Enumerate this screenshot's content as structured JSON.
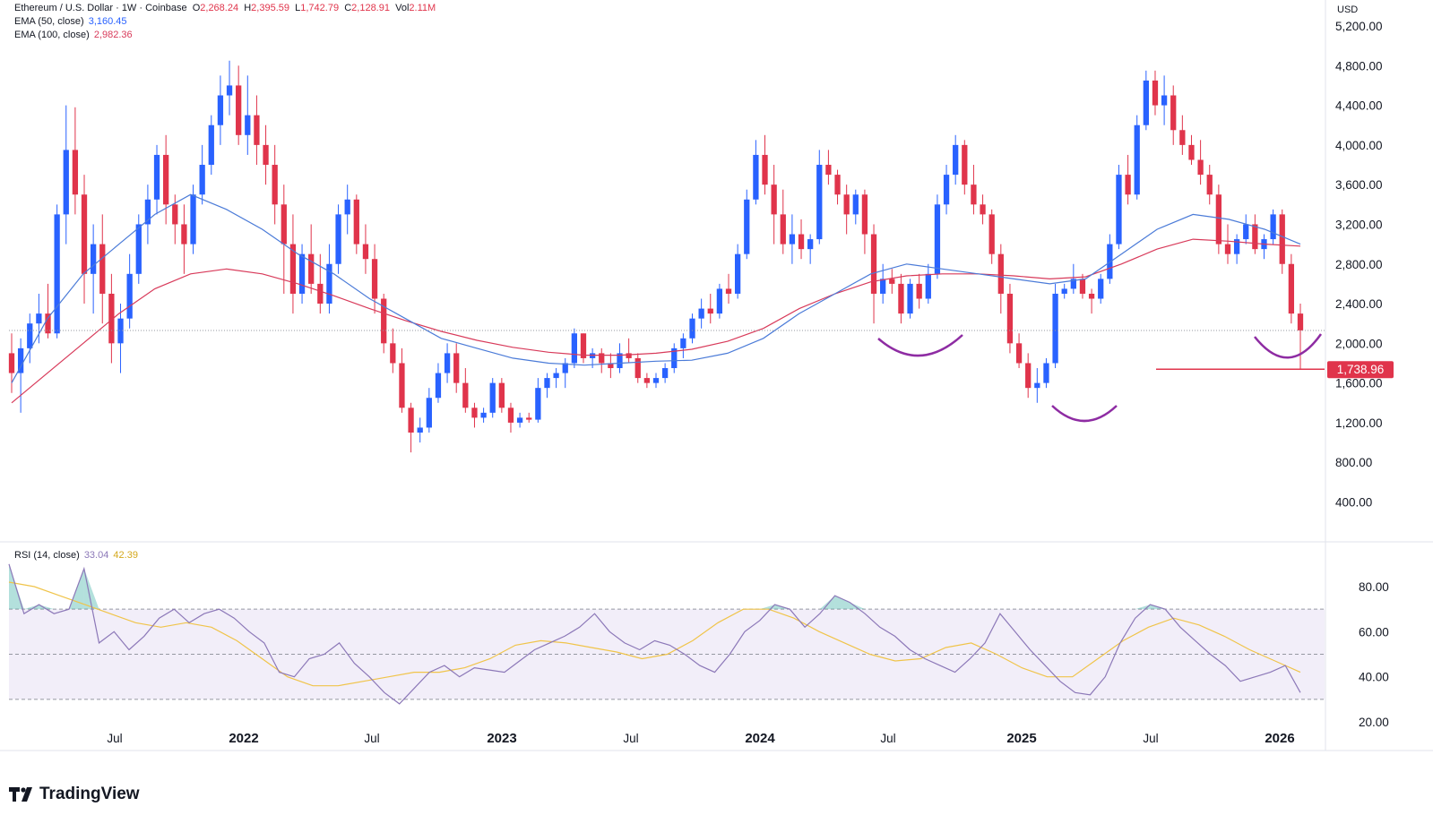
{
  "header": {
    "symbol": "Ethereum / U.S. Dollar · 1W · Coinbase",
    "o_label": "O",
    "o_value": "2,268.24",
    "h_label": "H",
    "h_value": "2,395.59",
    "l_label": "L",
    "l_value": "1,742.79",
    "c_label": "C",
    "c_value": "2,128.91",
    "vol_label": "Vol",
    "vol_value": "2.11M",
    "ema50_label": "EMA (50, close)",
    "ema50_value": "3,160.45",
    "ema100_label": "EMA (100, close)",
    "ema100_value": "2,982.36",
    "rsi_label": "RSI (14, close)",
    "rsi_value": "33.04",
    "rsi_ma_value": "42.39"
  },
  "colors": {
    "up": "#2962ff",
    "down": "#e0344b",
    "ema50": "#4b7bd8",
    "ema100": "#d83a5a",
    "rsi": "#8c78b8",
    "rsi_ma": "#f0c44a",
    "arc": "#8e2ca3",
    "support": "#e0344b"
  },
  "brand": "TradingView",
  "chart_data": [
    {
      "type": "candlestick",
      "title": "Ethereum / U.S. Dollar · 1W · Coinbase",
      "currency": "USD",
      "ylim": [
        0,
        5200
      ],
      "y_ticks": [
        "400.00",
        "800.00",
        "1,200.00",
        "1,600.00",
        "2,000.00",
        "2,400.00",
        "2,800.00",
        "3,200.00",
        "3,600.00",
        "4,000.00",
        "4,400.00",
        "4,800.00",
        "5,200.00"
      ],
      "x_ticks": [
        "Jul",
        "2022",
        "Jul",
        "2023",
        "Jul",
        "2024",
        "Jul",
        "2025",
        "Jul",
        "2026"
      ],
      "support_level": 1738.96,
      "support_label": "1,738.96",
      "current_price_line": 2128.91,
      "ohlc": [
        [
          1900,
          2100,
          1500,
          1700
        ],
        [
          1700,
          2050,
          1300,
          1950
        ],
        [
          1950,
          2300,
          1800,
          2200
        ],
        [
          2200,
          2500,
          2000,
          2300
        ],
        [
          2300,
          2600,
          2050,
          2100
        ],
        [
          2100,
          3400,
          2050,
          3300
        ],
        [
          3300,
          4400,
          3000,
          3950
        ],
        [
          3950,
          4380,
          3300,
          3500
        ],
        [
          3500,
          3700,
          2400,
          2700
        ],
        [
          2700,
          3200,
          2300,
          3000
        ],
        [
          3000,
          3300,
          2200,
          2500
        ],
        [
          2500,
          2700,
          1800,
          2000
        ],
        [
          2000,
          2400,
          1700,
          2250
        ],
        [
          2250,
          2900,
          2150,
          2700
        ],
        [
          2700,
          3300,
          2600,
          3200
        ],
        [
          3200,
          3600,
          3000,
          3450
        ],
        [
          3450,
          4000,
          3300,
          3900
        ],
        [
          3900,
          4100,
          3200,
          3400
        ],
        [
          3400,
          3500,
          3000,
          3200
        ],
        [
          3200,
          3400,
          2700,
          3000
        ],
        [
          3000,
          3600,
          2900,
          3500
        ],
        [
          3500,
          4000,
          3400,
          3800
        ],
        [
          3800,
          4300,
          3700,
          4200
        ],
        [
          4200,
          4700,
          4000,
          4500
        ],
        [
          4500,
          4850,
          4300,
          4600
        ],
        [
          4600,
          4800,
          4000,
          4100
        ],
        [
          4100,
          4700,
          3900,
          4300
        ],
        [
          4300,
          4500,
          3800,
          4000
        ],
        [
          4000,
          4200,
          3600,
          3800
        ],
        [
          3800,
          4000,
          3200,
          3400
        ],
        [
          3400,
          3600,
          2500,
          3000
        ],
        [
          3000,
          3300,
          2300,
          2500
        ],
        [
          2500,
          3000,
          2400,
          2900
        ],
        [
          2900,
          3200,
          2500,
          2600
        ],
        [
          2600,
          2900,
          2300,
          2400
        ],
        [
          2400,
          3000,
          2300,
          2800
        ],
        [
          2800,
          3400,
          2700,
          3300
        ],
        [
          3300,
          3600,
          3100,
          3450
        ],
        [
          3450,
          3500,
          2900,
          3000
        ],
        [
          3000,
          3200,
          2700,
          2850
        ],
        [
          2850,
          3000,
          2300,
          2450
        ],
        [
          2450,
          2500,
          1900,
          2000
        ],
        [
          2000,
          2150,
          1700,
          1800
        ],
        [
          1800,
          1950,
          1300,
          1350
        ],
        [
          1350,
          1400,
          900,
          1100
        ],
        [
          1100,
          1250,
          1000,
          1150
        ],
        [
          1150,
          1550,
          1100,
          1450
        ],
        [
          1450,
          1800,
          1400,
          1700
        ],
        [
          1700,
          2000,
          1600,
          1900
        ],
        [
          1900,
          2000,
          1500,
          1600
        ],
        [
          1600,
          1750,
          1300,
          1350
        ],
        [
          1350,
          1400,
          1150,
          1250
        ],
        [
          1250,
          1350,
          1200,
          1300
        ],
        [
          1300,
          1650,
          1250,
          1600
        ],
        [
          1600,
          1650,
          1300,
          1350
        ],
        [
          1350,
          1400,
          1100,
          1200
        ],
        [
          1200,
          1300,
          1150,
          1250
        ],
        [
          1250,
          1300,
          1200,
          1230
        ],
        [
          1230,
          1650,
          1200,
          1550
        ],
        [
          1550,
          1700,
          1450,
          1650
        ],
        [
          1650,
          1750,
          1550,
          1700
        ],
        [
          1700,
          1850,
          1550,
          1800
        ],
        [
          1800,
          2150,
          1750,
          2100
        ],
        [
          2100,
          2100,
          1800,
          1850
        ],
        [
          1850,
          1950,
          1750,
          1900
        ],
        [
          1900,
          1950,
          1700,
          1800
        ],
        [
          1800,
          1900,
          1650,
          1750
        ],
        [
          1750,
          2000,
          1700,
          1900
        ],
        [
          1900,
          2050,
          1800,
          1850
        ],
        [
          1850,
          1900,
          1600,
          1650
        ],
        [
          1650,
          1700,
          1550,
          1600
        ],
        [
          1600,
          1700,
          1550,
          1650
        ],
        [
          1650,
          1800,
          1600,
          1750
        ],
        [
          1750,
          2000,
          1700,
          1950
        ],
        [
          1950,
          2100,
          1850,
          2050
        ],
        [
          2050,
          2300,
          2000,
          2250
        ],
        [
          2250,
          2450,
          2150,
          2350
        ],
        [
          2350,
          2500,
          2200,
          2300
        ],
        [
          2300,
          2600,
          2250,
          2550
        ],
        [
          2550,
          2700,
          2400,
          2500
        ],
        [
          2500,
          3000,
          2450,
          2900
        ],
        [
          2900,
          3550,
          2850,
          3450
        ],
        [
          3450,
          4050,
          3400,
          3900
        ],
        [
          3900,
          4100,
          3500,
          3600
        ],
        [
          3600,
          3800,
          3000,
          3300
        ],
        [
          3300,
          3550,
          2900,
          3000
        ],
        [
          3000,
          3300,
          2800,
          3100
        ],
        [
          3100,
          3250,
          2850,
          2950
        ],
        [
          2950,
          3100,
          2800,
          3050
        ],
        [
          3050,
          3950,
          3000,
          3800
        ],
        [
          3800,
          3950,
          3600,
          3700
        ],
        [
          3700,
          3750,
          3400,
          3500
        ],
        [
          3500,
          3600,
          3100,
          3300
        ],
        [
          3300,
          3550,
          3200,
          3500
        ],
        [
          3500,
          3550,
          2900,
          3100
        ],
        [
          3100,
          3200,
          2200,
          2500
        ],
        [
          2500,
          2800,
          2400,
          2650
        ],
        [
          2650,
          2750,
          2500,
          2600
        ],
        [
          2600,
          2700,
          2200,
          2300
        ],
        [
          2300,
          2650,
          2250,
          2600
        ],
        [
          2600,
          2700,
          2350,
          2450
        ],
        [
          2450,
          2800,
          2400,
          2700
        ],
        [
          2700,
          3500,
          2650,
          3400
        ],
        [
          3400,
          3800,
          3300,
          3700
        ],
        [
          3700,
          4100,
          3600,
          4000
        ],
        [
          4000,
          4050,
          3500,
          3600
        ],
        [
          3600,
          3800,
          3300,
          3400
        ],
        [
          3400,
          3500,
          3200,
          3300
        ],
        [
          3300,
          3350,
          2800,
          2900
        ],
        [
          2900,
          3000,
          2300,
          2500
        ],
        [
          2500,
          2600,
          1900,
          2000
        ],
        [
          2000,
          2100,
          1750,
          1800
        ],
        [
          1800,
          1900,
          1450,
          1550
        ],
        [
          1550,
          1750,
          1400,
          1600
        ],
        [
          1600,
          1850,
          1550,
          1800
        ],
        [
          1800,
          2600,
          1750,
          2500
        ],
        [
          2500,
          2600,
          2450,
          2550
        ],
        [
          2550,
          2800,
          2500,
          2650
        ],
        [
          2650,
          2700,
          2450,
          2500
        ],
        [
          2500,
          2550,
          2300,
          2450
        ],
        [
          2450,
          2700,
          2400,
          2650
        ],
        [
          2650,
          3100,
          2600,
          3000
        ],
        [
          3000,
          3800,
          2950,
          3700
        ],
        [
          3700,
          3900,
          3400,
          3500
        ],
        [
          3500,
          4300,
          3450,
          4200
        ],
        [
          4200,
          4750,
          4150,
          4650
        ],
        [
          4650,
          4750,
          4300,
          4400
        ],
        [
          4400,
          4700,
          4200,
          4500
        ],
        [
          4500,
          4600,
          4000,
          4150
        ],
        [
          4150,
          4300,
          3900,
          4000
        ],
        [
          4000,
          4100,
          3800,
          3850
        ],
        [
          3850,
          4050,
          3600,
          3700
        ],
        [
          3700,
          3800,
          3400,
          3500
        ],
        [
          3500,
          3600,
          2900,
          3000
        ],
        [
          3000,
          3200,
          2800,
          2900
        ],
        [
          2900,
          3100,
          2800,
          3050
        ],
        [
          3050,
          3300,
          3000,
          3200
        ],
        [
          3200,
          3300,
          2900,
          2950
        ],
        [
          2950,
          3100,
          2850,
          3050
        ],
        [
          3050,
          3350,
          3000,
          3300
        ],
        [
          3300,
          3350,
          2700,
          2800
        ],
        [
          2800,
          2900,
          2200,
          2300
        ],
        [
          2300,
          2400,
          1740,
          2130
        ]
      ],
      "ema50": [
        1600,
        2250,
        2700,
        3000,
        3300,
        3500,
        3350,
        3150,
        2900,
        2700,
        2450,
        2250,
        2050,
        1950,
        1850,
        1800,
        1780,
        1800,
        1820,
        1830,
        1900,
        2050,
        2300,
        2500,
        2700,
        2800,
        2750,
        2700,
        2650,
        2600,
        2650,
        2900,
        3150,
        3300,
        3250,
        3150,
        3000
      ],
      "ema100": [
        1400,
        1700,
        2000,
        2300,
        2550,
        2700,
        2750,
        2700,
        2600,
        2480,
        2350,
        2230,
        2120,
        2030,
        1960,
        1910,
        1880,
        1880,
        1900,
        1940,
        2020,
        2150,
        2350,
        2500,
        2620,
        2680,
        2700,
        2700,
        2680,
        2650,
        2670,
        2800,
        2950,
        3050,
        3030,
        3000,
        2980
      ]
    },
    {
      "type": "line",
      "title": "RSI (14, close)",
      "ylim": [
        20,
        100
      ],
      "y_ticks": [
        "20.00",
        "40.00",
        "60.00",
        "80.00"
      ],
      "bands": [
        30,
        50,
        70
      ],
      "series": [
        {
          "name": "RSI",
          "values": [
            90,
            68,
            72,
            68,
            70,
            88,
            55,
            60,
            52,
            58,
            66,
            70,
            64,
            68,
            70,
            66,
            60,
            55,
            42,
            40,
            48,
            50,
            55,
            46,
            40,
            33,
            28,
            35,
            42,
            45,
            40,
            44,
            43,
            42,
            47,
            52,
            55,
            58,
            62,
            68,
            60,
            55,
            52,
            56,
            54,
            50,
            45,
            42,
            50,
            60,
            65,
            72,
            70,
            62,
            68,
            76,
            73,
            68,
            62,
            58,
            52,
            48,
            45,
            42,
            48,
            55,
            68,
            60,
            52,
            45,
            38,
            33,
            32,
            40,
            55,
            66,
            72,
            70,
            62,
            56,
            50,
            45,
            38,
            40,
            42,
            45,
            33
          ]
        },
        {
          "name": "RSI MA",
          "values": [
            82,
            80,
            76,
            72,
            68,
            64,
            62,
            64,
            62,
            56,
            48,
            40,
            36,
            36,
            38,
            40,
            42,
            42,
            44,
            48,
            54,
            56,
            55,
            53,
            51,
            48,
            50,
            56,
            64,
            70,
            70,
            66,
            60,
            55,
            50,
            47,
            48,
            53,
            55,
            50,
            44,
            40,
            40,
            48,
            56,
            62,
            66,
            63,
            58,
            52,
            47,
            42
          ]
        }
      ]
    }
  ]
}
